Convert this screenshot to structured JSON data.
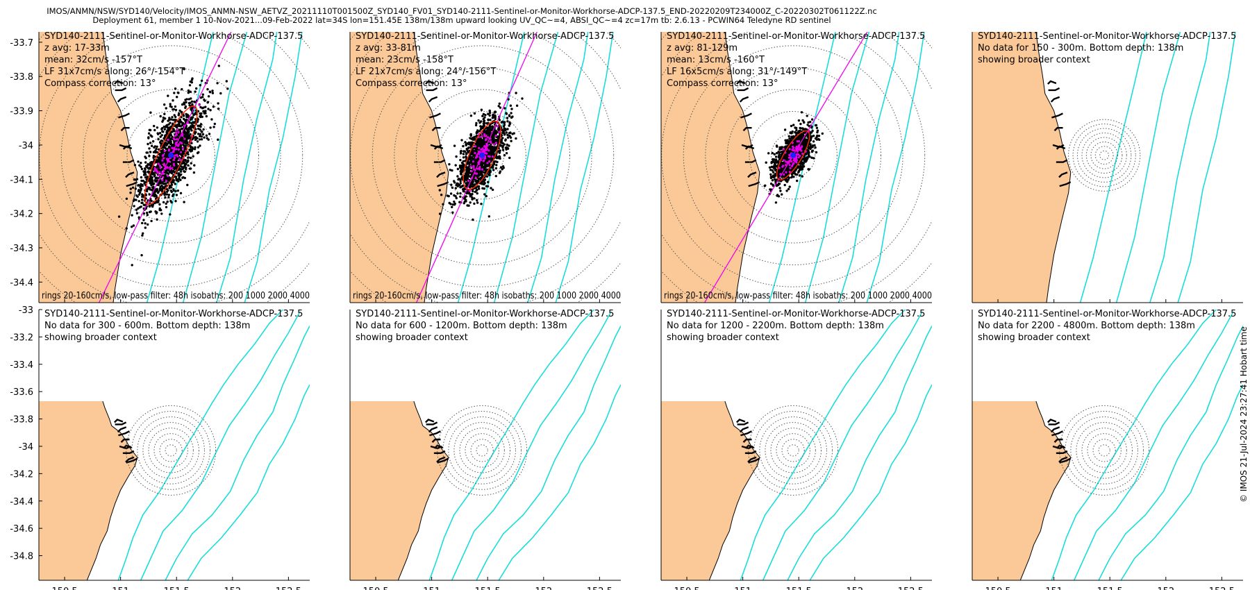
{
  "header": {
    "line1": "IMOS/ANMN/NSW/SYD140/Velocity/IMOS_ANMN-NSW_AETVZ_20211110T001500Z_SYD140_FV01_SYD140-2111-Sentinel-or-Monitor-Workhorse-ADCP-137.5_END-20220209T234000Z_C-20220302T061122Z.nc",
    "line2": "Deployment 61, member 1 10-Nov-2021...09-Feb-2022 lat=34S lon=151.45E 138m/138m upward looking UV_QC~=4, ABSI_QC~=4 zc=17m tb: 2.6.13 - PCWIN64 Teledyne RD sentinel"
  },
  "copyright": "© IMOS 21-Jul-2024 23:27:41 Hobart time",
  "colors": {
    "land": "#FBC997",
    "coast": "#000000",
    "isobath": "#19DCDC",
    "ring": "#555555",
    "major_axis": "#F200F2",
    "ellipse": "#FF2A00",
    "scatter": "#000000",
    "lowpass": "#E600E6",
    "mean": "#2020FF"
  },
  "chart_data": {
    "type": "scatter",
    "xlabel": "Longitude",
    "ylabel": "Latitude",
    "top_xlim": [
      150.27,
      152.69
    ],
    "top_ylim": [
      -34.46,
      -33.67
    ],
    "bottom_xlim": [
      150.27,
      152.69
    ],
    "bottom_ylim": [
      -34.98,
      -33.0
    ],
    "x_ticks": [
      150.5,
      151,
      151.5,
      152,
      152.5
    ],
    "x_tick_labels": [
      "150.5",
      "151",
      "151.5",
      "152",
      "152.5"
    ],
    "top_y_ticks": [
      -34.4,
      -34.3,
      -34.2,
      -34.1,
      -34.0,
      -33.9,
      -33.8,
      -33.7
    ],
    "top_y_tick_labels": [
      "-34.4",
      "-34.3",
      "-34.2",
      "-34.1",
      "-34",
      "-33.9",
      "-33.8",
      "-33.7"
    ],
    "bottom_y_ticks": [
      -34.8,
      -34.6,
      -34.4,
      -34.2,
      -34.0,
      -33.8,
      -33.6,
      -33.4,
      -33.2,
      -33.0
    ],
    "bottom_y_tick_labels": [
      "-34.8",
      "-34.6",
      "-34.4",
      "-34.2",
      "-34",
      "-33.8",
      "-33.6",
      "-33.4",
      "-33.2",
      "-33"
    ],
    "origin": {
      "lon": 151.45,
      "lat": -34.03
    },
    "coast": [
      [
        150.27,
        -33.67
      ],
      [
        150.84,
        -33.67
      ],
      [
        150.86,
        -33.72
      ],
      [
        150.9,
        -33.8
      ],
      [
        150.92,
        -33.85
      ],
      [
        151.0,
        -33.9
      ],
      [
        151.05,
        -33.96
      ],
      [
        151.09,
        -34.02
      ],
      [
        151.15,
        -34.08
      ],
      [
        151.13,
        -34.14
      ],
      [
        151.07,
        -34.22
      ],
      [
        151.0,
        -34.32
      ],
      [
        150.95,
        -34.42
      ],
      [
        150.91,
        -34.52
      ],
      [
        150.88,
        -34.62
      ],
      [
        150.82,
        -34.72
      ],
      [
        150.78,
        -34.82
      ],
      [
        150.73,
        -34.92
      ],
      [
        150.7,
        -34.98
      ],
      [
        150.27,
        -34.98
      ]
    ],
    "isobaths": [
      {
        "depth_m": 200,
        "points": [
          [
            150.98,
            -34.98
          ],
          [
            151.05,
            -34.82
          ],
          [
            151.11,
            -34.67
          ],
          [
            151.2,
            -34.5
          ],
          [
            151.35,
            -34.33
          ],
          [
            151.55,
            -34.05
          ],
          [
            151.72,
            -33.82
          ],
          [
            151.82,
            -33.68
          ],
          [
            151.92,
            -33.55
          ],
          [
            152.05,
            -33.4
          ],
          [
            152.2,
            -33.25
          ],
          [
            152.33,
            -33.1
          ],
          [
            152.45,
            -33.0
          ]
        ]
      },
      {
        "depth_m": 1000,
        "points": [
          [
            151.18,
            -34.98
          ],
          [
            151.28,
            -34.8
          ],
          [
            151.38,
            -34.62
          ],
          [
            151.55,
            -34.47
          ],
          [
            151.72,
            -34.27
          ],
          [
            151.85,
            -34.05
          ],
          [
            151.97,
            -33.85
          ],
          [
            152.12,
            -33.68
          ],
          [
            152.25,
            -33.52
          ],
          [
            152.38,
            -33.33
          ],
          [
            152.5,
            -33.17
          ],
          [
            152.6,
            -33.02
          ]
        ]
      },
      {
        "depth_m": 2000,
        "points": [
          [
            151.4,
            -34.98
          ],
          [
            151.5,
            -34.82
          ],
          [
            151.64,
            -34.64
          ],
          [
            151.82,
            -34.5
          ],
          [
            151.98,
            -34.33
          ],
          [
            152.1,
            -34.1
          ],
          [
            152.22,
            -33.92
          ],
          [
            152.36,
            -33.75
          ],
          [
            152.45,
            -33.55
          ],
          [
            152.55,
            -33.37
          ],
          [
            152.64,
            -33.2
          ],
          [
            152.69,
            -33.12
          ]
        ]
      },
      {
        "depth_m": 4000,
        "points": [
          [
            151.6,
            -34.98
          ],
          [
            151.72,
            -34.82
          ],
          [
            151.9,
            -34.67
          ],
          [
            152.07,
            -34.5
          ],
          [
            152.22,
            -34.34
          ],
          [
            152.33,
            -34.13
          ],
          [
            152.45,
            -33.98
          ],
          [
            152.56,
            -33.8
          ],
          [
            152.64,
            -33.63
          ],
          [
            152.69,
            -33.55
          ]
        ]
      }
    ],
    "ring_radii_cm_s": [
      20,
      40,
      60,
      80,
      100,
      120,
      140,
      160
    ],
    "panels": [
      {
        "title": "SYD140-2111-Sentinel-or-Monitor-Workhorse-ADCP-137.5",
        "has_data": true,
        "lines": [
          "z avg: 17-33m",
          "mean: 32cm/s -157°T",
          "LF 31x7cm/s along: 26°/-154°T",
          "Compass correction: 13°"
        ],
        "footer": "rings 20-160cm/s, low-pass filter: 48h isobaths: 200 1000 2000 4000",
        "mean_speed_cm_s": 32,
        "mean_dir_degT": -157,
        "lf_major_cm_s": 31,
        "lf_minor_cm_s": 7,
        "along_dir_deg": 26,
        "spread": [
          0.16,
          0.5
        ]
      },
      {
        "title": "SYD140-2111-Sentinel-or-Monitor-Workhorse-ADCP-137.5",
        "has_data": true,
        "lines": [
          "z avg: 33-81m",
          "mean: 23cm/s -158°T",
          "LF 21x7cm/s along: 24°/-156°T",
          "Compass correction: 13°"
        ],
        "footer": "rings 20-160cm/s, low-pass filter: 48h isobaths: 200 1000 2000 4000",
        "mean_speed_cm_s": 23,
        "mean_dir_degT": -158,
        "lf_major_cm_s": 21,
        "lf_minor_cm_s": 7,
        "along_dir_deg": 24,
        "spread": [
          0.13,
          0.35
        ]
      },
      {
        "title": "SYD140-2111-Sentinel-or-Monitor-Workhorse-ADCP-137.5",
        "has_data": true,
        "lines": [
          "z avg: 81-129m",
          "mean: 13cm/s -160°T",
          "LF 16x5cm/s along: 31°/-149°T",
          "Compass correction: 13°"
        ],
        "footer": "rings 20-160cm/s, low-pass filter: 48h isobaths: 200 1000 2000 4000",
        "mean_speed_cm_s": 13,
        "mean_dir_degT": -160,
        "lf_major_cm_s": 16,
        "lf_minor_cm_s": 5,
        "along_dir_deg": 31,
        "spread": [
          0.1,
          0.24
        ]
      },
      {
        "title": "SYD140-2111-Sentinel-or-Monitor-Workhorse-ADCP-137.5",
        "has_data": false,
        "lines": [
          "No data for 150 - 300m. Bottom depth: 138m",
          "showing broader context"
        ]
      },
      {
        "title": "SYD140-2111-Sentinel-or-Monitor-Workhorse-ADCP-137.5",
        "has_data": false,
        "lines": [
          "No data for 300 - 600m. Bottom depth: 138m",
          "showing broader context"
        ]
      },
      {
        "title": "SYD140-2111-Sentinel-or-Monitor-Workhorse-ADCP-137.5",
        "has_data": false,
        "lines": [
          "No data for 600 - 1200m. Bottom depth: 138m",
          "showing broader context"
        ]
      },
      {
        "title": "SYD140-2111-Sentinel-or-Monitor-Workhorse-ADCP-137.5",
        "has_data": false,
        "lines": [
          "No data for 1200 - 2200m. Bottom depth: 138m",
          "showing broader context"
        ]
      },
      {
        "title": "SYD140-2111-Sentinel-or-Monitor-Workhorse-ADCP-137.5",
        "has_data": false,
        "lines": [
          "No data for 2200 - 4800m. Bottom depth: 138m",
          "showing broader context"
        ]
      }
    ]
  }
}
